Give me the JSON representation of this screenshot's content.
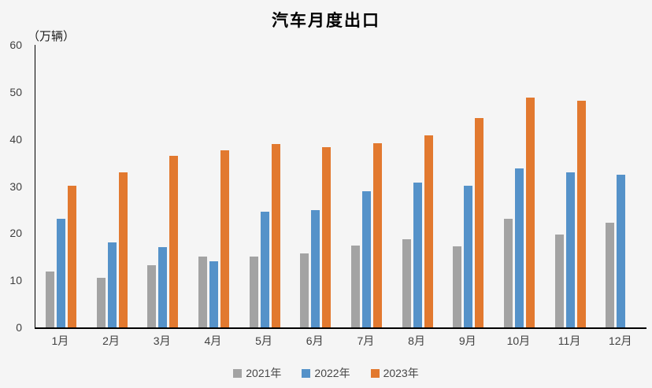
{
  "title": "汽车月度出口",
  "unit_label": "（万辆）",
  "colors": {
    "background": "#F5F5F5",
    "axis_line": "#000000",
    "tick_text": "#3F3F3F",
    "legend_text": "#474747",
    "series_2021": "#A3A3A3",
    "series_2022": "#5592C9",
    "series_2023": "#E2792F"
  },
  "chart_data": {
    "type": "bar",
    "title": "汽车月度出口",
    "unit": "万辆",
    "xlabel": "",
    "ylabel": "（万辆）",
    "ylim": [
      0,
      60
    ],
    "yticks": [
      0,
      10,
      20,
      30,
      40,
      50,
      60
    ],
    "grid": false,
    "legend_position": "bottom",
    "categories": [
      "1月",
      "2月",
      "3月",
      "4月",
      "5月",
      "6月",
      "7月",
      "8月",
      "9月",
      "10月",
      "11月",
      "12月"
    ],
    "series": [
      {
        "name": "2021年",
        "color": "#A3A3A3",
        "values": [
          11.9,
          10.5,
          13.2,
          15.1,
          15.0,
          15.8,
          17.4,
          18.7,
          17.3,
          23.1,
          19.8,
          22.2
        ]
      },
      {
        "name": "2022年",
        "color": "#5592C9",
        "values": [
          23.1,
          18.0,
          17.0,
          14.1,
          24.5,
          24.9,
          29.0,
          30.8,
          30.1,
          33.7,
          32.9,
          32.4
        ]
      },
      {
        "name": "2023年",
        "color": "#E2792F",
        "values": [
          30.1,
          32.9,
          36.4,
          37.6,
          38.9,
          38.2,
          39.2,
          40.8,
          44.4,
          48.8,
          48.2,
          null
        ]
      }
    ]
  }
}
